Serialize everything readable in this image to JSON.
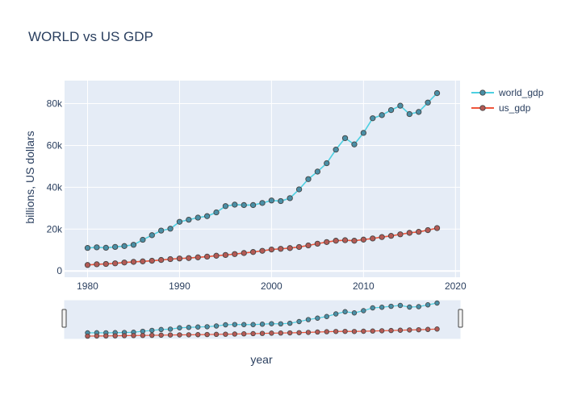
{
  "chart_data": {
    "type": "line",
    "title": "WORLD vs US GDP",
    "xlabel": "year",
    "ylabel": "billions, US dollars",
    "xlim": [
      1977.5,
      2020.5
    ],
    "ylim": [
      -3000,
      91000
    ],
    "x_ticks": [
      1980,
      1990,
      2000,
      2010,
      2020
    ],
    "y_ticks": [
      0,
      20000,
      40000,
      60000,
      80000
    ],
    "y_tick_labels": [
      "0",
      "20k",
      "40k",
      "60k",
      "80k"
    ],
    "grid": true,
    "legend_position": "top-right",
    "rangeslider": true,
    "x": [
      1980,
      1981,
      1982,
      1983,
      1984,
      1985,
      1986,
      1987,
      1988,
      1989,
      1990,
      1991,
      1992,
      1993,
      1994,
      1995,
      1996,
      1997,
      1998,
      1999,
      2000,
      2001,
      2002,
      2003,
      2004,
      2005,
      2006,
      2007,
      2008,
      2009,
      2010,
      2011,
      2012,
      2013,
      2014,
      2015,
      2016,
      2017,
      2018
    ],
    "series": [
      {
        "name": "world_gdp",
        "color": "#4dd0e1",
        "marker_color": "#4a8fa6",
        "values": [
          11000,
          11300,
          11100,
          11500,
          11900,
          12500,
          14900,
          17100,
          19300,
          20200,
          23500,
          24500,
          25500,
          26200,
          28000,
          31000,
          31700,
          31500,
          31500,
          32500,
          33700,
          33400,
          34800,
          39000,
          43900,
          47500,
          51500,
          58000,
          63500,
          60500,
          66000,
          73000,
          74500,
          76900,
          79000,
          75000,
          76000,
          80500,
          85000
        ]
      },
      {
        "name": "us_gdp",
        "color": "#ef553b",
        "marker_color": "#b35a55",
        "values": [
          2860,
          3200,
          3350,
          3640,
          4040,
          4350,
          4590,
          4880,
          5250,
          5660,
          5960,
          6160,
          6520,
          6860,
          7290,
          7640,
          8070,
          8580,
          9060,
          9630,
          10250,
          10580,
          10940,
          11460,
          12210,
          13040,
          13820,
          14450,
          14710,
          14450,
          14990,
          15540,
          16200,
          16780,
          17520,
          18220,
          18710,
          19520,
          20500
        ]
      }
    ]
  }
}
